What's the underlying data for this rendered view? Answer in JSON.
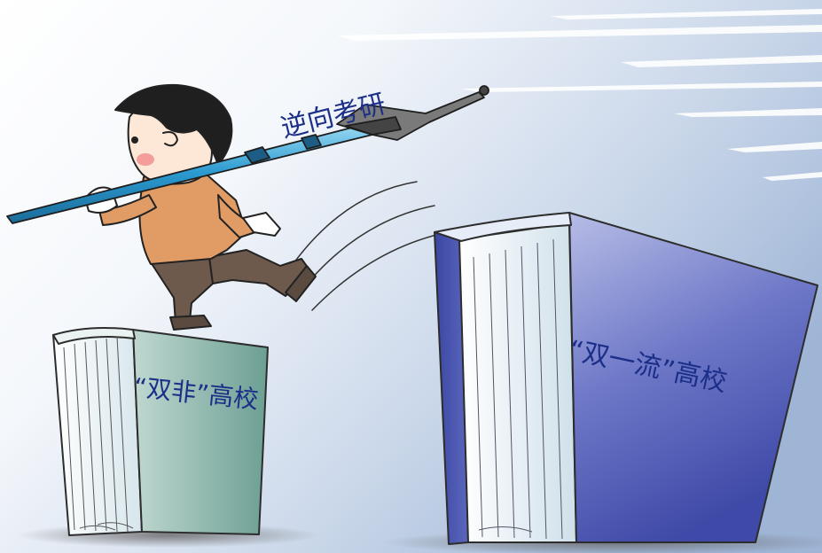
{
  "labels": {
    "pen": "逆向考研",
    "left_book": "“双非”高校",
    "right_book": "“双一流”高校"
  }
}
